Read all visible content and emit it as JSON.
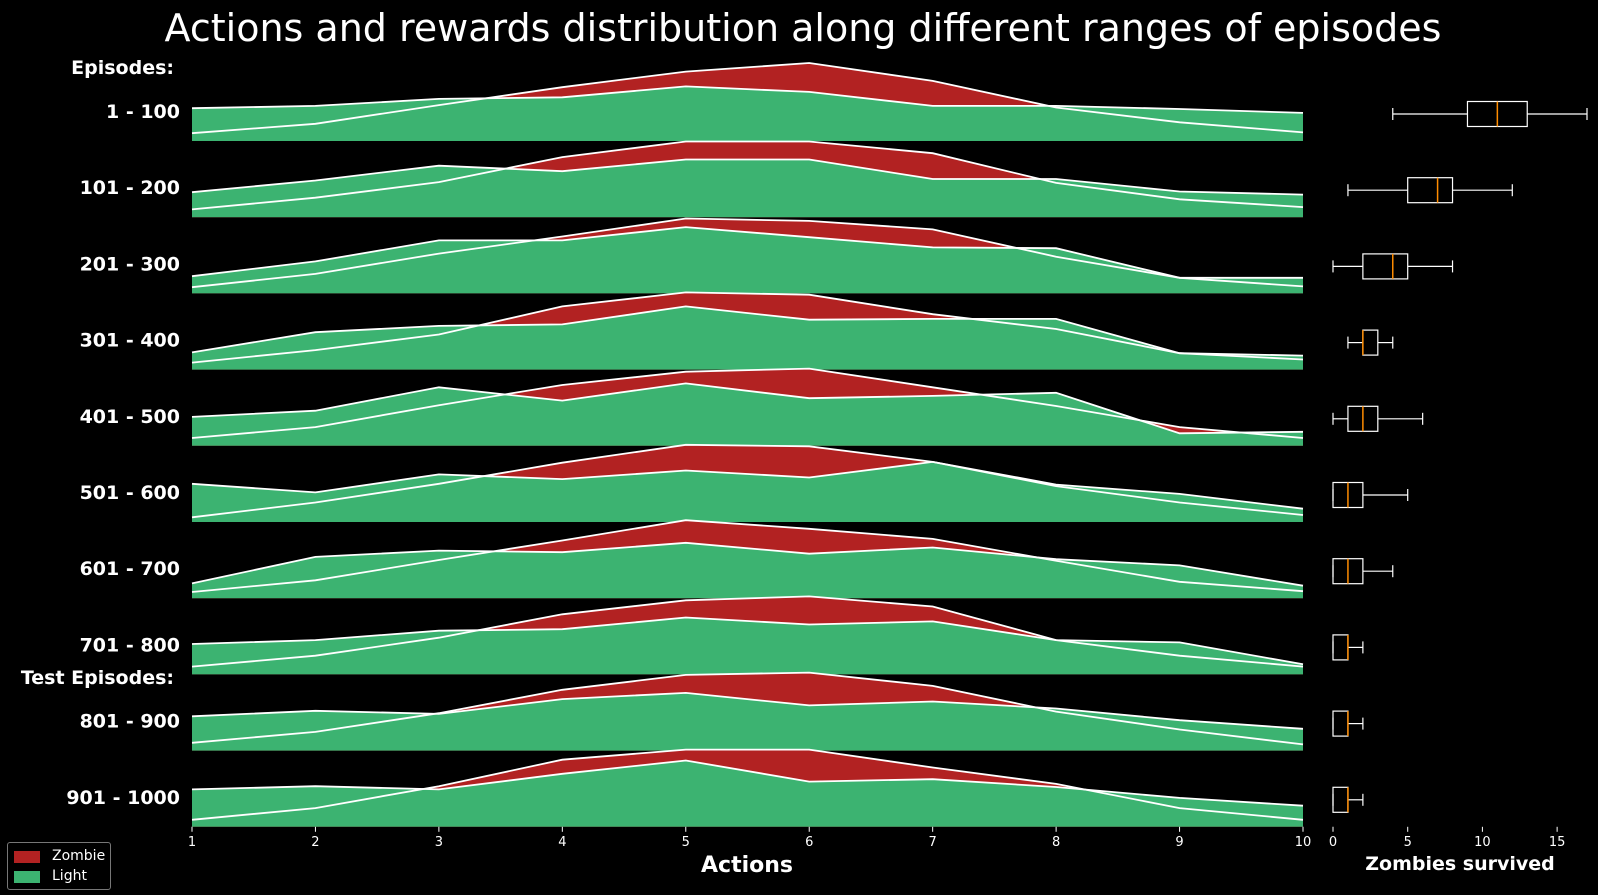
{
  "chart_data": {
    "type": "area",
    "title": "Actions and rewards distribution along different ranges of episodes",
    "xlabel": "Actions",
    "x_ticks": [
      "1",
      "2",
      "3",
      "4",
      "5",
      "6",
      "7",
      "8",
      "9",
      "10"
    ],
    "section_labels": [
      "Episodes:",
      "Test Episodes:"
    ],
    "ridges": [
      {
        "label": "1 - 100",
        "zombie": [
          0.1,
          0.22,
          0.46,
          0.69,
          0.89,
          1.0,
          0.77,
          0.43,
          0.24,
          0.11
        ],
        "light": [
          0.42,
          0.45,
          0.54,
          0.56,
          0.7,
          0.63,
          0.45,
          0.45,
          0.41,
          0.36
        ]
      },
      {
        "label": "101 - 200",
        "zombie": [
          0.1,
          0.25,
          0.45,
          0.77,
          0.97,
          0.97,
          0.82,
          0.44,
          0.23,
          0.13
        ],
        "light": [
          0.32,
          0.47,
          0.66,
          0.59,
          0.74,
          0.74,
          0.49,
          0.49,
          0.33,
          0.29
        ]
      },
      {
        "label": "201 - 300",
        "zombie": [
          0.08,
          0.25,
          0.51,
          0.73,
          0.96,
          0.93,
          0.82,
          0.47,
          0.2,
          0.09
        ],
        "light": [
          0.22,
          0.41,
          0.68,
          0.68,
          0.85,
          0.72,
          0.59,
          0.58,
          0.2,
          0.2
        ]
      },
      {
        "label": "301 - 400",
        "zombie": [
          0.09,
          0.25,
          0.45,
          0.81,
          0.99,
          0.96,
          0.71,
          0.52,
          0.21,
          0.13
        ],
        "light": [
          0.22,
          0.48,
          0.56,
          0.58,
          0.81,
          0.64,
          0.65,
          0.65,
          0.21,
          0.18
        ]
      },
      {
        "label": "401 - 500",
        "zombie": [
          0.1,
          0.24,
          0.52,
          0.78,
          0.95,
          0.99,
          0.75,
          0.51,
          0.24,
          0.1
        ],
        "light": [
          0.37,
          0.45,
          0.75,
          0.58,
          0.8,
          0.61,
          0.64,
          0.68,
          0.16,
          0.18
        ]
      },
      {
        "label": "501 - 600",
        "zombie": [
          0.06,
          0.25,
          0.49,
          0.76,
          0.99,
          0.97,
          0.77,
          0.46,
          0.25,
          0.09
        ],
        "light": [
          0.49,
          0.38,
          0.61,
          0.55,
          0.66,
          0.57,
          0.77,
          0.48,
          0.36,
          0.17
        ]
      },
      {
        "label": "601 - 700",
        "zombie": [
          0.08,
          0.23,
          0.49,
          0.74,
          1.0,
          0.89,
          0.76,
          0.48,
          0.21,
          0.09
        ],
        "light": [
          0.19,
          0.53,
          0.61,
          0.59,
          0.71,
          0.57,
          0.65,
          0.5,
          0.42,
          0.16
        ]
      },
      {
        "label": "701 - 800",
        "zombie": [
          0.1,
          0.24,
          0.47,
          0.77,
          0.95,
          1.0,
          0.87,
          0.44,
          0.24,
          0.1
        ],
        "light": [
          0.39,
          0.44,
          0.56,
          0.58,
          0.73,
          0.64,
          0.68,
          0.44,
          0.41,
          0.13
        ]
      },
      {
        "label": "801 - 900",
        "zombie": [
          0.1,
          0.24,
          0.48,
          0.78,
          0.97,
          1.0,
          0.83,
          0.5,
          0.27,
          0.08
        ],
        "light": [
          0.44,
          0.51,
          0.47,
          0.66,
          0.74,
          0.58,
          0.63,
          0.54,
          0.39,
          0.28
        ]
      },
      {
        "label": "901 - 1000",
        "zombie": [
          0.09,
          0.24,
          0.52,
          0.86,
          0.99,
          0.99,
          0.76,
          0.55,
          0.24,
          0.09
        ],
        "light": [
          0.48,
          0.52,
          0.48,
          0.68,
          0.85,
          0.58,
          0.61,
          0.51,
          0.37,
          0.27
        ]
      }
    ],
    "boxplot": {
      "xlabel": "Zombies survived",
      "xlim": [
        0,
        17
      ],
      "x_ticks": [
        "0",
        "5",
        "10",
        "15"
      ],
      "boxes": [
        {
          "whislo": 4,
          "q1": 9,
          "med": 11,
          "q3": 13,
          "whishi": 17
        },
        {
          "whislo": 1,
          "q1": 5,
          "med": 7,
          "q3": 8,
          "whishi": 12
        },
        {
          "whislo": 0,
          "q1": 2,
          "med": 4,
          "q3": 5,
          "whishi": 8
        },
        {
          "whislo": 1,
          "q1": 2,
          "med": 2,
          "q3": 3,
          "whishi": 4
        },
        {
          "whislo": 0,
          "q1": 1,
          "med": 2,
          "q3": 3,
          "whishi": 6
        },
        {
          "whislo": 0,
          "q1": 0,
          "med": 1,
          "q3": 2,
          "whishi": 5
        },
        {
          "whislo": 0,
          "q1": 0,
          "med": 1,
          "q3": 2,
          "whishi": 4
        },
        {
          "whislo": 0,
          "q1": 0,
          "med": 1,
          "q3": 1,
          "whishi": 2
        },
        {
          "whislo": 0,
          "q1": 0,
          "med": 1,
          "q3": 1,
          "whishi": 2
        },
        {
          "whislo": 0,
          "q1": 0,
          "med": 1,
          "q3": 1,
          "whishi": 2
        }
      ]
    },
    "legend": {
      "position": "bottom-left",
      "items": [
        {
          "name": "Zombie",
          "color": "#b22222"
        },
        {
          "name": "Light",
          "color": "#3cb371"
        }
      ]
    },
    "colors": {
      "background": "#000000",
      "zombie": "#b22222",
      "light": "#3cb371",
      "outline": "#ffffff",
      "median": "#ff8c00"
    }
  }
}
